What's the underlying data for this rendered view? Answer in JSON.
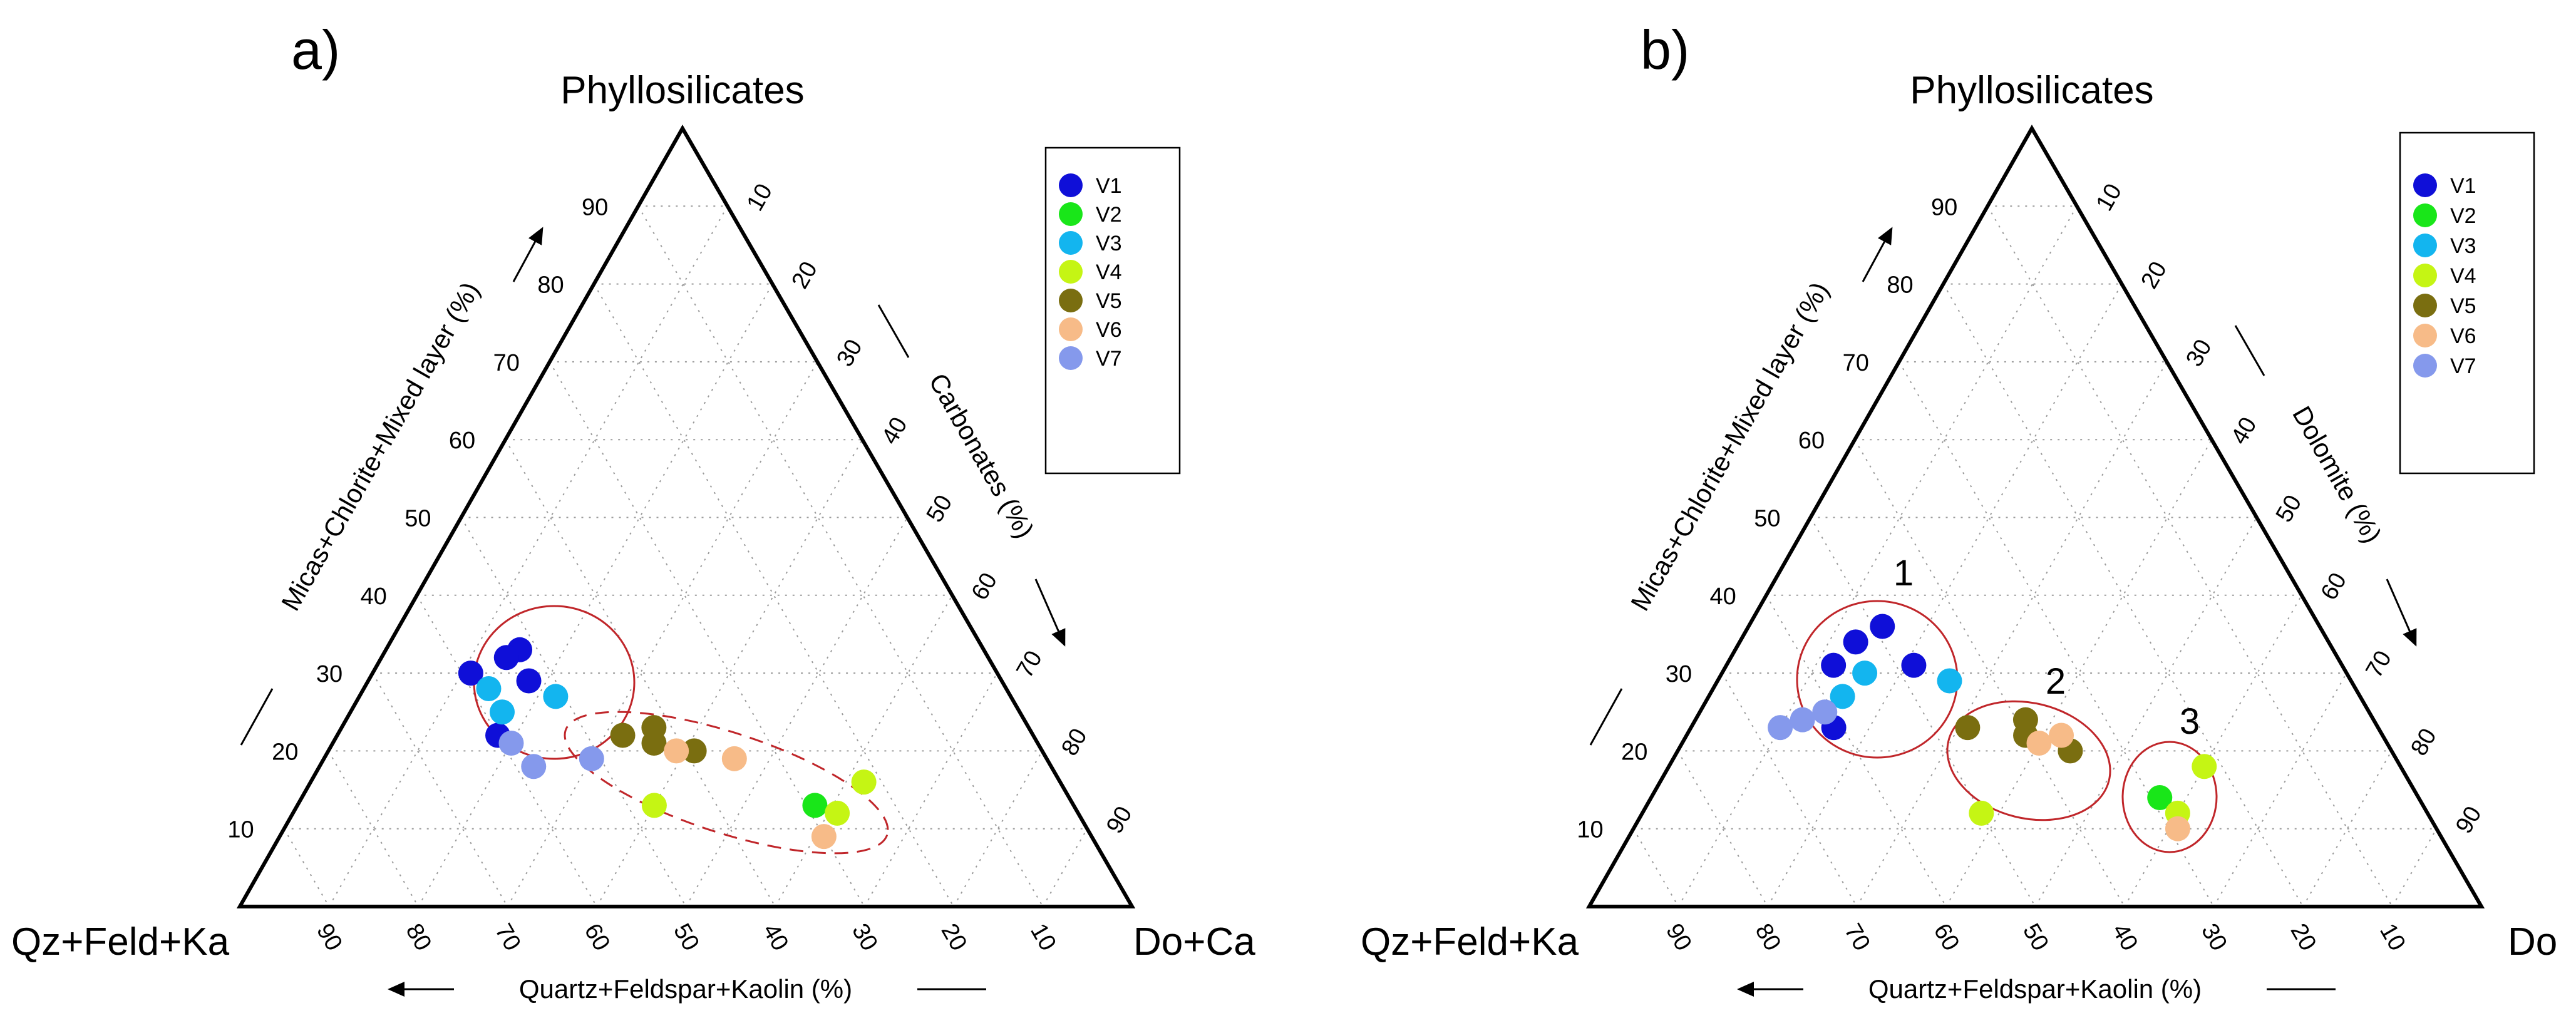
{
  "chart_data": [
    {
      "type": "ternary-scatter",
      "panel_label": "a)",
      "apex_label": "Phyllosilicates",
      "left_corner_label": "Qz+Feld+Ka",
      "right_corner_label": "Do+Ca",
      "left_axis_title": "Micas+Chlorite+Mixed layer (%)",
      "right_axis_title": "Carbonates (%)",
      "bottom_axis_title": "Quartz+Feldspar+Kaolin (%)",
      "ticks": [
        "10",
        "20",
        "30",
        "40",
        "50",
        "60",
        "70",
        "80",
        "90"
      ],
      "grid": true,
      "legend_position": "top-right",
      "series": [
        {
          "name": "V1",
          "color": "#0f0fd8",
          "points": [
            {
              "p": 30,
              "c": 11
            },
            {
              "p": 33,
              "c": 15
            },
            {
              "p": 32,
              "c": 14
            },
            {
              "p": 29,
              "c": 18
            },
            {
              "p": 22,
              "c": 18
            }
          ]
        },
        {
          "name": "V2",
          "color": "#19e619",
          "points": [
            {
              "p": 13,
              "c": 58
            }
          ]
        },
        {
          "name": "V3",
          "color": "#13b5ef",
          "points": [
            {
              "p": 28,
              "c": 14
            },
            {
              "p": 25,
              "c": 17
            },
            {
              "p": 27,
              "c": 22
            }
          ]
        },
        {
          "name": "V4",
          "color": "#c5f514",
          "points": [
            {
              "p": 13,
              "c": 40
            },
            {
              "p": 16,
              "c": 62
            },
            {
              "p": 12,
              "c": 61
            }
          ]
        },
        {
          "name": "V5",
          "color": "#7a6e10",
          "points": [
            {
              "p": 22,
              "c": 32
            },
            {
              "p": 23,
              "c": 35
            },
            {
              "p": 21,
              "c": 36
            },
            {
              "p": 20,
              "c": 41
            }
          ]
        },
        {
          "name": "V6",
          "color": "#f7bb88",
          "points": [
            {
              "p": 20,
              "c": 39
            },
            {
              "p": 19,
              "c": 46
            },
            {
              "p": 9,
              "c": 61
            }
          ]
        },
        {
          "name": "V7",
          "color": "#8599ec",
          "points": [
            {
              "p": 21,
              "c": 20
            },
            {
              "p": 18,
              "c": 24
            },
            {
              "p": 19,
              "c": 30
            }
          ]
        }
      ]
    },
    {
      "type": "ternary-scatter",
      "panel_label": "b)",
      "apex_label": "Phyllosilicates",
      "left_corner_label": "Qz+Feld+Ka",
      "right_corner_label": "Do",
      "left_axis_title": "Micas+Chlorite+Mixed layer (%)",
      "right_axis_title": "Dolomite (%)",
      "bottom_axis_title": "Quartz+Feldspar+Kaolin (%)",
      "ticks": [
        "10",
        "20",
        "30",
        "40",
        "50",
        "60",
        "70",
        "80",
        "90"
      ],
      "grid": true,
      "legend_position": "top-right",
      "group_labels": [
        "1",
        "2",
        "3"
      ],
      "series": [
        {
          "name": "V1",
          "color": "#0f0fd8",
          "points": [
            {
              "p": 34,
              "c": 13
            },
            {
              "p": 36,
              "c": 15
            },
            {
              "p": 31,
              "c": 12
            },
            {
              "p": 31,
              "c": 21
            },
            {
              "p": 23,
              "c": 16
            }
          ]
        },
        {
          "name": "V2",
          "color": "#19e619",
          "points": [
            {
              "p": 14,
              "c": 57
            }
          ]
        },
        {
          "name": "V3",
          "color": "#13b5ef",
          "points": [
            {
              "p": 30,
              "c": 16
            },
            {
              "p": 27,
              "c": 15
            },
            {
              "p": 29,
              "c": 26
            }
          ]
        },
        {
          "name": "V4",
          "color": "#c5f514",
          "points": [
            {
              "p": 18,
              "c": 60
            },
            {
              "p": 12,
              "c": 38
            },
            {
              "p": 12,
              "c": 60
            }
          ]
        },
        {
          "name": "V5",
          "color": "#7a6e10",
          "points": [
            {
              "p": 23,
              "c": 31
            },
            {
              "p": 24,
              "c": 37
            },
            {
              "p": 22,
              "c": 38
            },
            {
              "p": 20,
              "c": 44
            }
          ]
        },
        {
          "name": "V6",
          "color": "#f7bb88",
          "points": [
            {
              "p": 21,
              "c": 40
            },
            {
              "p": 22,
              "c": 42
            },
            {
              "p": 10,
              "c": 61
            }
          ]
        },
        {
          "name": "V7",
          "color": "#8599ec",
          "points": [
            {
              "p": 23,
              "c": 10
            },
            {
              "p": 24,
              "c": 12
            },
            {
              "p": 25,
              "c": 14
            }
          ]
        }
      ]
    }
  ]
}
